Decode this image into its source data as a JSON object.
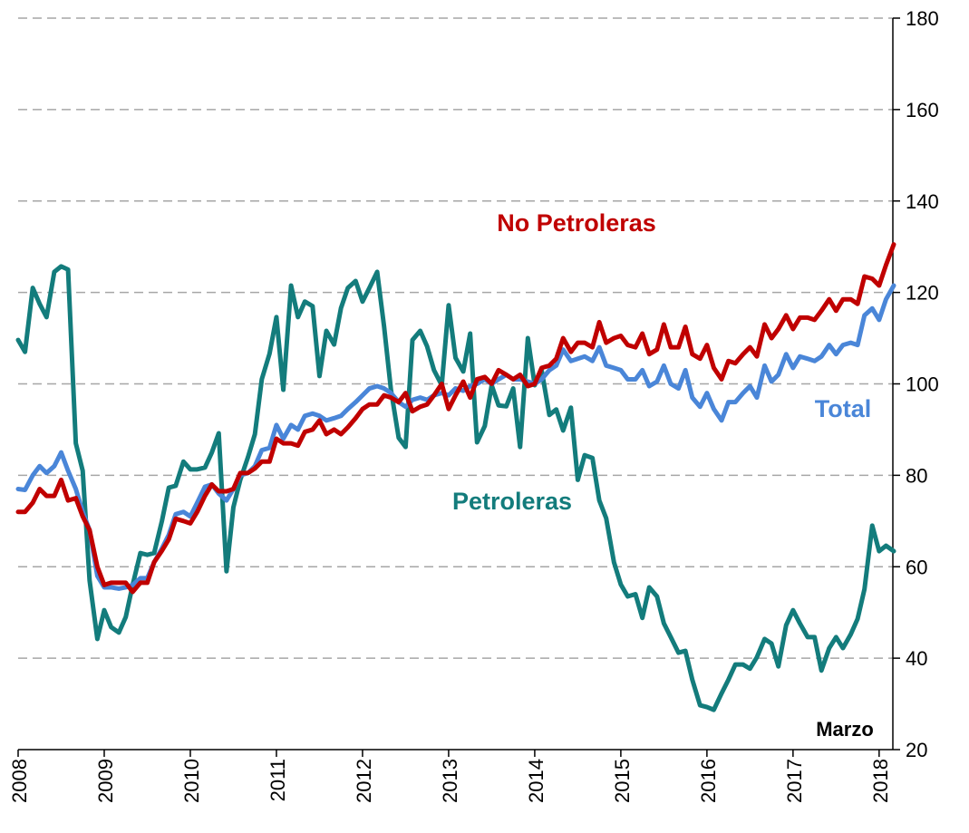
{
  "chart_data": {
    "type": "line",
    "x": [
      2008,
      2008.08,
      2008.17,
      2008.25,
      2008.33,
      2008.42,
      2008.5,
      2008.58,
      2008.67,
      2008.75,
      2008.83,
      2008.92,
      2009,
      2009.08,
      2009.17,
      2009.25,
      2009.33,
      2009.42,
      2009.5,
      2009.58,
      2009.67,
      2009.75,
      2009.83,
      2009.92,
      2010,
      2010.08,
      2010.17,
      2010.25,
      2010.33,
      2010.42,
      2010.5,
      2010.58,
      2010.67,
      2010.75,
      2010.83,
      2010.92,
      2011,
      2011.08,
      2011.17,
      2011.25,
      2011.33,
      2011.42,
      2011.5,
      2011.58,
      2011.67,
      2011.75,
      2011.83,
      2011.92,
      2012,
      2012.08,
      2012.17,
      2012.25,
      2012.33,
      2012.42,
      2012.5,
      2012.58,
      2012.67,
      2012.75,
      2012.83,
      2012.92,
      2013,
      2013.08,
      2013.17,
      2013.25,
      2013.33,
      2013.42,
      2013.5,
      2013.58,
      2013.67,
      2013.75,
      2013.83,
      2013.92,
      2014,
      2014.08,
      2014.17,
      2014.25,
      2014.33,
      2014.42,
      2014.5,
      2014.58,
      2014.67,
      2014.75,
      2014.83,
      2014.92,
      2015,
      2015.08,
      2015.17,
      2015.25,
      2015.33,
      2015.42,
      2015.5,
      2015.58,
      2015.67,
      2015.75,
      2015.83,
      2015.92,
      2016,
      2016.08,
      2016.17,
      2016.25,
      2016.33,
      2016.42,
      2016.5,
      2016.58,
      2016.67,
      2016.75,
      2016.83,
      2016.92,
      2017,
      2017.08,
      2017.17,
      2017.25,
      2017.33,
      2017.42,
      2017.5,
      2017.58,
      2017.67,
      2017.75,
      2017.83,
      2017.92,
      2018,
      2018.08,
      2018.17
    ],
    "series": [
      {
        "name": "Petroleras",
        "color": "#137c7c",
        "values": [
          109.6,
          107,
          121,
          117.5,
          114.6,
          124.5,
          125.7,
          125,
          87,
          81,
          57,
          44.2,
          50.5,
          46.8,
          45.6,
          49,
          56,
          63,
          62.6,
          63,
          70,
          77.3,
          77.7,
          83,
          81.3,
          81.3,
          81.7,
          85,
          89.2,
          59,
          73,
          79,
          84,
          89,
          101,
          106.6,
          114.6,
          98.7,
          121.5,
          114.6,
          118,
          117,
          101.7,
          111.6,
          108.6,
          116.6,
          121,
          122.5,
          118,
          121,
          124.5,
          112.6,
          98.7,
          88.2,
          86.2,
          109.6,
          111.6,
          108.2,
          103,
          99.7,
          117.2,
          105.7,
          102.7,
          111,
          87.2,
          90.8,
          99.7,
          95.3,
          95.1,
          99,
          86.2,
          110,
          99.7,
          103,
          93.2,
          94.4,
          89.8,
          94.8,
          79,
          84.4,
          83.8,
          74.5,
          70.6,
          61,
          56.1,
          53.5,
          54,
          48.8,
          55.5,
          53.5,
          47.6,
          44.6,
          41.2,
          41.6,
          35.3,
          29.7,
          29.3,
          28.7,
          32.3,
          35.3,
          38.6,
          38.6,
          37.7,
          40.2,
          44.2,
          43.2,
          38.2,
          47.2,
          50.5,
          47.6,
          44.6,
          44.6,
          37.3,
          42.2,
          44.6,
          42.2,
          45.2,
          48.6,
          55.1,
          69,
          63.4,
          64.6,
          63.4
        ]
      },
      {
        "name": "Total",
        "color": "#4a86d8",
        "values": [
          77,
          76.8,
          80,
          82,
          80.5,
          82,
          85,
          81,
          77,
          72,
          68,
          58,
          55.5,
          55.5,
          55.2,
          55.5,
          56,
          57.5,
          57.5,
          61,
          64,
          67,
          71.5,
          72,
          71,
          74,
          77.5,
          78,
          76,
          74.5,
          77,
          80,
          80.5,
          82,
          85.5,
          86,
          91,
          88,
          91,
          90,
          93,
          93.5,
          93,
          92,
          92.5,
          93,
          94.5,
          96,
          97.5,
          99,
          99.5,
          99,
          98,
          96,
          95,
          96.5,
          97,
          96.5,
          97.5,
          98,
          97.5,
          99,
          98.5,
          99.5,
          100,
          101,
          100,
          101,
          102,
          101,
          101,
          100.5,
          100,
          101,
          103,
          104,
          107.5,
          105,
          105.5,
          106,
          105,
          108,
          104,
          103.5,
          103,
          101,
          101,
          103,
          99.5,
          100.5,
          104,
          100,
          99,
          103,
          97,
          95,
          98,
          94.5,
          92,
          96,
          96,
          98,
          99.5,
          97,
          104,
          100.5,
          102,
          106.5,
          103.5,
          106,
          105.5,
          105,
          106,
          108.5,
          106.5,
          108.5,
          109,
          108.5,
          115,
          116.5,
          114,
          118.5,
          121.5
        ]
      },
      {
        "name": "No Petroleras",
        "color": "#c00000",
        "values": [
          72,
          72,
          74,
          77,
          75.5,
          75.5,
          79,
          74.5,
          75,
          71,
          68,
          60,
          56,
          56.5,
          56.5,
          56.5,
          54.5,
          56.5,
          56.5,
          61,
          63.5,
          66,
          70.5,
          70,
          69.5,
          72,
          75.5,
          78,
          76.5,
          76.5,
          77,
          80.5,
          80.5,
          81.5,
          83,
          83,
          88,
          87,
          87,
          86.5,
          89.5,
          90,
          92,
          89,
          90,
          89,
          90.5,
          92.5,
          94.5,
          95.5,
          95.5,
          97.5,
          97,
          96,
          98,
          94,
          95,
          95.5,
          97.5,
          100,
          94.5,
          97.5,
          100.5,
          97,
          101,
          101.5,
          100,
          103,
          102,
          101,
          102,
          99.5,
          100,
          103.5,
          104,
          105.5,
          110,
          107,
          109,
          109,
          108,
          113.5,
          109,
          110,
          110.5,
          108.5,
          108,
          111,
          106.5,
          107.5,
          113,
          108,
          108,
          112.5,
          106.5,
          105.5,
          108.5,
          103.5,
          101,
          105,
          104.5,
          106.5,
          108,
          106,
          113,
          110,
          112,
          115,
          112,
          114.5,
          114.5,
          114,
          116,
          118.5,
          116,
          118.5,
          118.5,
          117.5,
          123.5,
          123,
          121.5,
          126,
          130.5
        ]
      }
    ],
    "annotations": [
      "Marzo"
    ],
    "xlim": [
      2008,
      2018.17
    ],
    "xticks": [
      2008,
      2009,
      2010,
      2011,
      2012,
      2013,
      2014,
      2015,
      2016,
      2017,
      2018
    ],
    "ylim": [
      20,
      180
    ],
    "yticks": [
      20,
      40,
      60,
      80,
      100,
      120,
      140,
      160,
      180
    ],
    "grid": true
  }
}
